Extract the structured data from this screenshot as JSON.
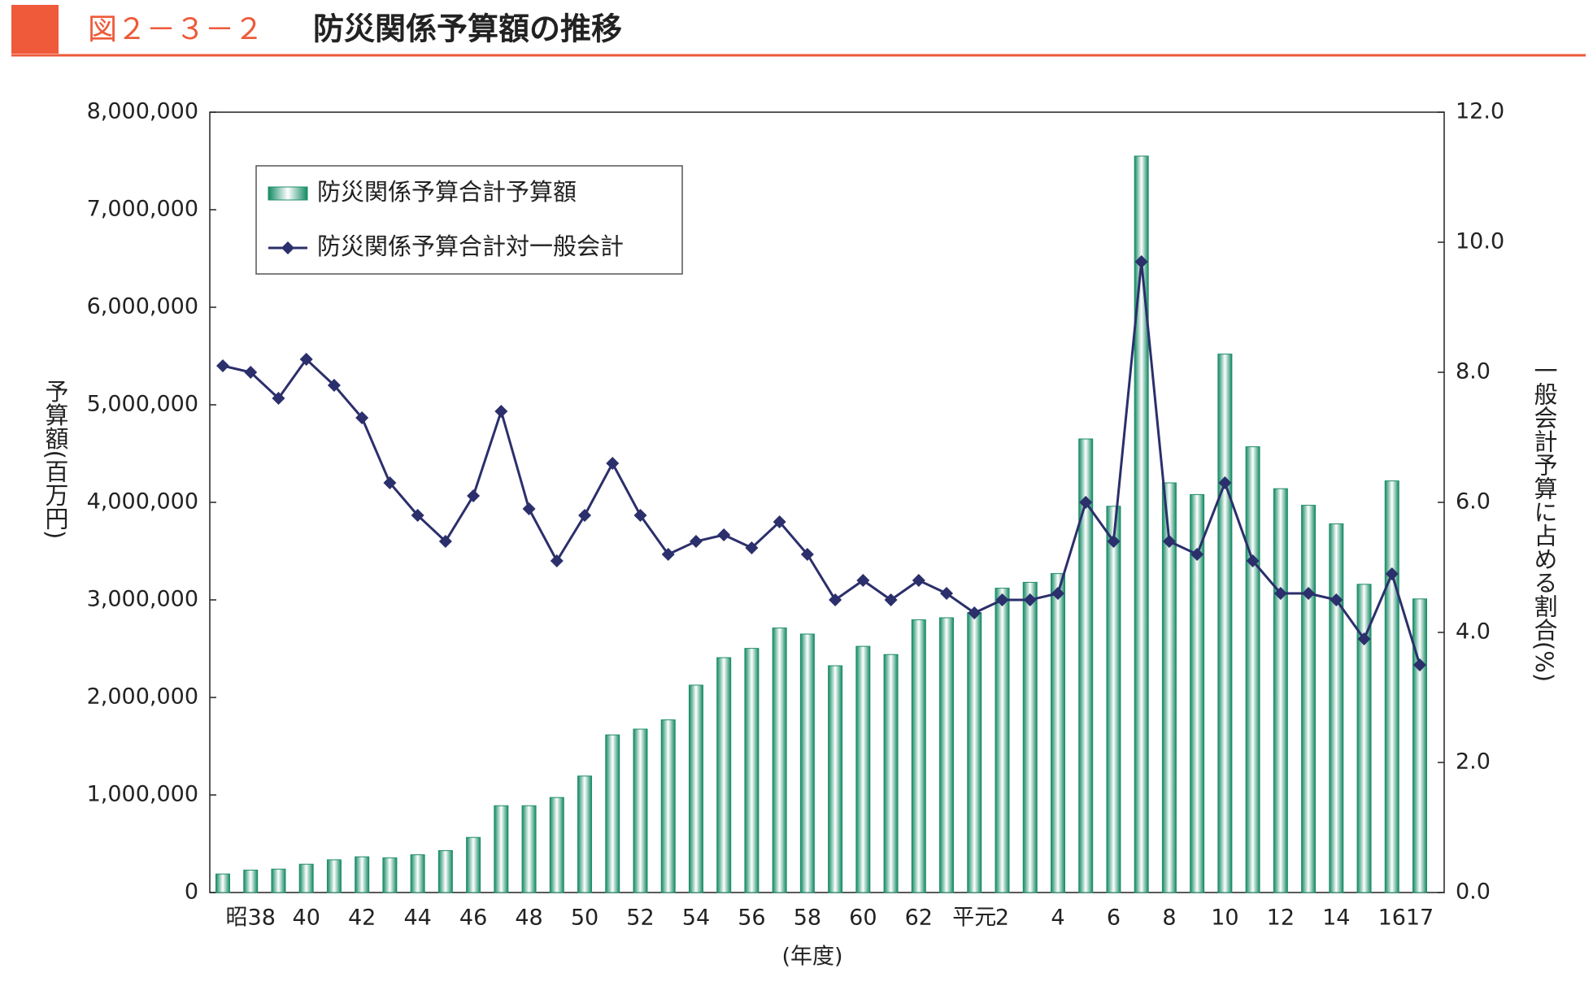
{
  "chart_data": {
    "type": "combo",
    "figure_number": "図２－３－２",
    "title": "防災関係予算額の推移",
    "ylabel": "予算額(百万円)",
    "y2label": "一般会計予算に占める割合(%)",
    "xlabel": "(年度)",
    "categories": [
      null,
      "昭38",
      null,
      "40",
      null,
      "42",
      null,
      "44",
      null,
      "46",
      null,
      "48",
      null,
      "50",
      null,
      "52",
      null,
      "54",
      null,
      "56",
      null,
      "58",
      null,
      "60",
      null,
      "62",
      null,
      "平元",
      "2",
      null,
      "4",
      null,
      "6",
      null,
      "8",
      null,
      "10",
      null,
      "12",
      null,
      "14",
      null,
      "16",
      "17"
    ],
    "series": [
      {
        "name": "防災関係予算合計予算額",
        "type": "bar",
        "color": "#1e8c6a",
        "values": [
          190000,
          230000,
          240000,
          290000,
          335000,
          366000,
          356000,
          387000,
          430000,
          565000,
          890000,
          890000,
          974000,
          1194000,
          1616000,
          1675000,
          1770000,
          2126000,
          2408000,
          2503000,
          2712000,
          2650000,
          2325000,
          2524000,
          2440000,
          2796000,
          2817000,
          2870000,
          3120000,
          3180000,
          3270000,
          4650000,
          3960000,
          7550000,
          4200000,
          4080000,
          5520000,
          4570000,
          4140000,
          3970000,
          3780000,
          3160000,
          4220000,
          3010000
        ]
      },
      {
        "name": "防災関係予算合計対一般会計",
        "type": "line",
        "axis": "y2",
        "color": "#2b2f6b",
        "values": [
          8.1,
          8.0,
          7.6,
          8.2,
          7.8,
          7.3,
          6.3,
          5.8,
          5.4,
          6.1,
          7.4,
          5.9,
          5.1,
          5.8,
          6.6,
          5.8,
          5.2,
          5.4,
          5.5,
          5.3,
          5.7,
          5.2,
          4.5,
          4.8,
          4.5,
          4.8,
          4.6,
          4.3,
          4.5,
          4.5,
          4.6,
          6.0,
          5.4,
          9.7,
          5.4,
          5.2,
          6.3,
          5.1,
          4.6,
          4.6,
          4.5,
          3.9,
          4.9,
          3.5
        ]
      }
    ],
    "ylim": [
      0,
      8000000
    ],
    "yticks": [
      0,
      {
        "value": 1000000,
        "label": "1,000,000"
      },
      {
        "value": 2000000,
        "label": "2,000,000"
      },
      {
        "value": 3000000,
        "label": "3,000,000"
      },
      {
        "value": 4000000,
        "label": "4,000,000"
      },
      {
        "value": 5000000,
        "label": "5,000,000"
      },
      {
        "value": 6000000,
        "label": "6,000,000"
      },
      {
        "value": 7000000,
        "label": "7,000,000"
      },
      {
        "value": 8000000,
        "label": "8,000,000"
      }
    ],
    "y2lim": [
      0,
      12
    ],
    "y2ticks": [
      {
        "value": 0,
        "label": "0.0"
      },
      {
        "value": 2,
        "label": "2.0"
      },
      {
        "value": 4,
        "label": "4.0"
      },
      {
        "value": 6,
        "label": "6.0"
      },
      {
        "value": 8,
        "label": "8.0"
      },
      {
        "value": 10,
        "label": "10.0"
      },
      {
        "value": 12,
        "label": "12.0"
      }
    ],
    "grid": false,
    "legend": "upper left"
  }
}
